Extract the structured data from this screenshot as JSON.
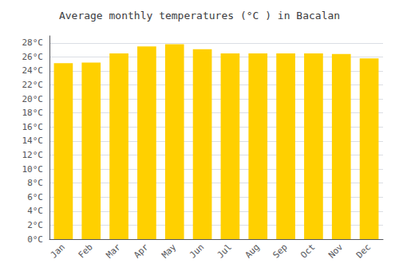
{
  "chart_data": {
    "type": "bar",
    "title": "Average monthly temperatures (°C ) in Bacalan",
    "categories": [
      "Jan",
      "Feb",
      "Mar",
      "Apr",
      "May",
      "Jun",
      "Jul",
      "Aug",
      "Sep",
      "Oct",
      "Nov",
      "Dec"
    ],
    "values": [
      25.1,
      25.2,
      26.5,
      27.5,
      27.8,
      27.1,
      26.5,
      26.5,
      26.5,
      26.5,
      26.4,
      25.8
    ],
    "color": "#FFD000",
    "ylim": [
      0,
      29
    ],
    "yticks": [
      {
        "value": 0,
        "label": "0°C"
      },
      {
        "value": 2,
        "label": "2°C"
      },
      {
        "value": 4,
        "label": "4°C"
      },
      {
        "value": 6,
        "label": "6°C"
      },
      {
        "value": 8,
        "label": "8°C"
      },
      {
        "value": 10,
        "label": "10°C"
      },
      {
        "value": 12,
        "label": "12°C"
      },
      {
        "value": 14,
        "label": "14°C"
      },
      {
        "value": 16,
        "label": "16°C"
      },
      {
        "value": 18,
        "label": "18°C"
      },
      {
        "value": 20,
        "label": "20°C"
      },
      {
        "value": 22,
        "label": "22°C"
      },
      {
        "value": 24,
        "label": "24°C"
      },
      {
        "value": 26,
        "label": "26°C"
      },
      {
        "value": 28,
        "label": "28°C"
      }
    ],
    "grid": true
  }
}
